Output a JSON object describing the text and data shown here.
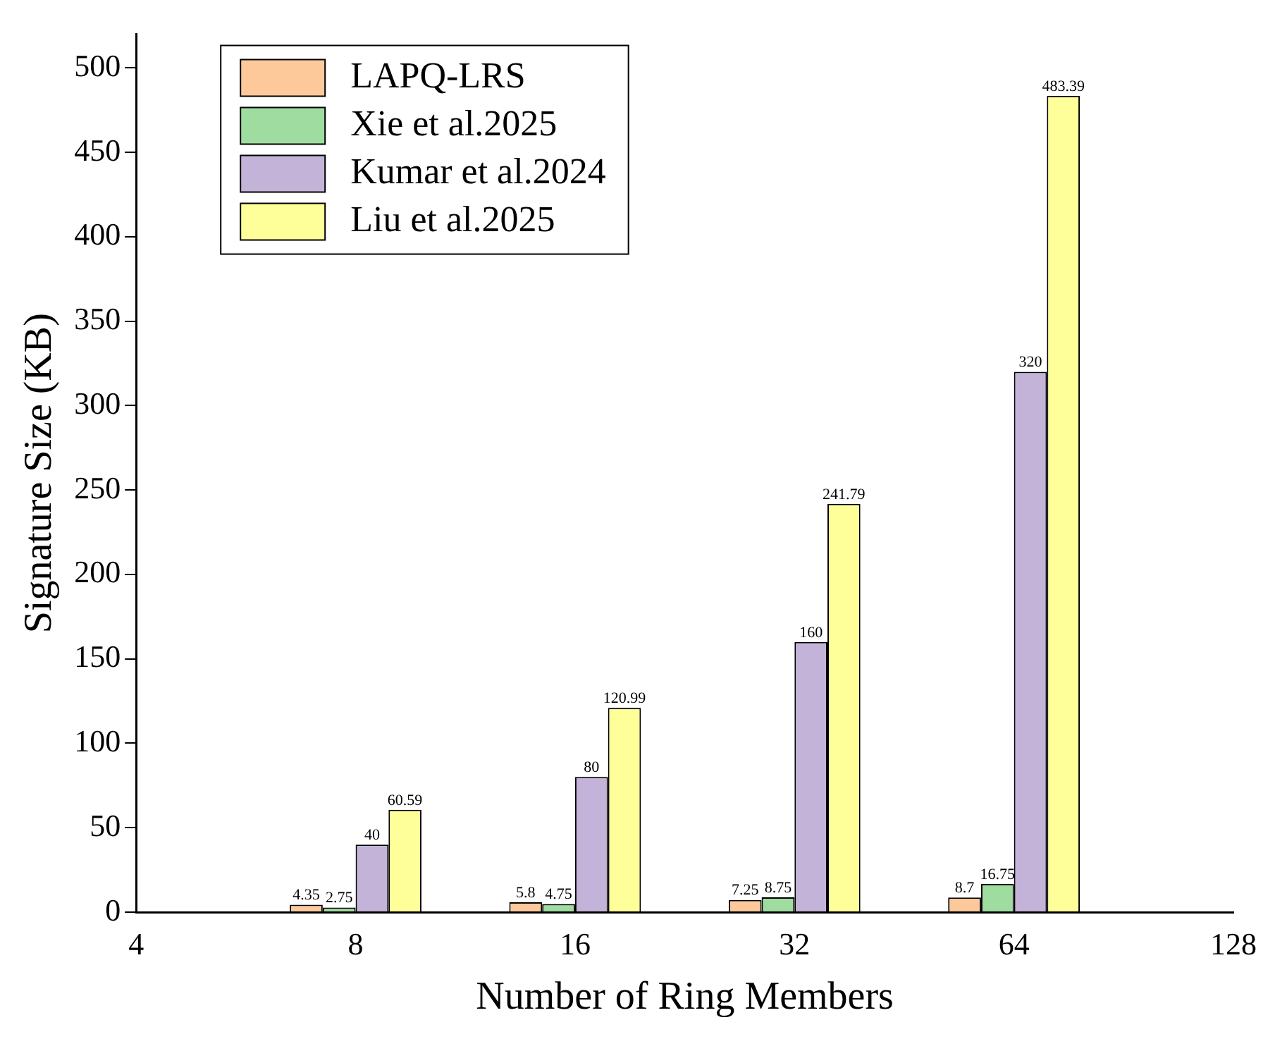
{
  "chart_data": {
    "type": "bar",
    "xlabel": "Number of Ring Members",
    "ylabel": "Signature Size (KB)",
    "categories": [
      "4",
      "8",
      "16",
      "32",
      "64",
      "128"
    ],
    "series": [
      {
        "name": "LAPQ-LRS",
        "color": "#fdc99b",
        "values": [
          null,
          4.35,
          5.8,
          7.25,
          8.7,
          null
        ]
      },
      {
        "name": "Xie et al.2025",
        "color": "#9fdc9f",
        "values": [
          null,
          2.75,
          4.75,
          8.75,
          16.75,
          null
        ]
      },
      {
        "name": "Kumar et al.2024",
        "color": "#c3b3d8",
        "values": [
          null,
          40,
          80,
          160,
          320,
          null
        ]
      },
      {
        "name": "Liu et al.2025",
        "color": "#ffff99",
        "values": [
          null,
          60.59,
          120.99,
          241.79,
          483.39,
          null
        ]
      }
    ],
    "ylim": [
      0,
      520
    ],
    "yticks": [
      0,
      50,
      100,
      150,
      200,
      250,
      300,
      350,
      400,
      450,
      500
    ],
    "data_labels": true,
    "legend": "top left",
    "grid": false
  }
}
